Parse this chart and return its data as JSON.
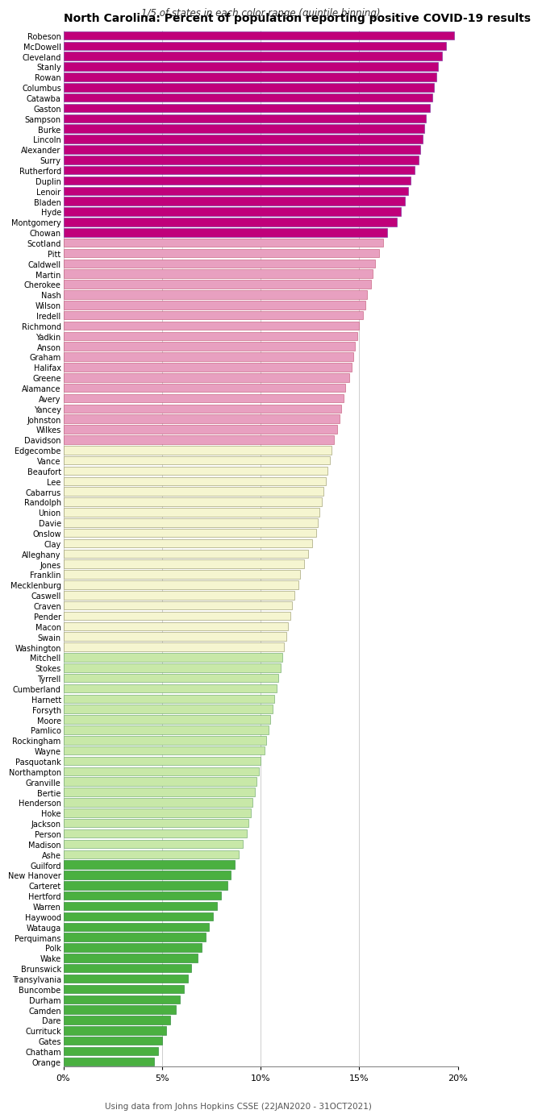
{
  "title": "North Carolina: Percent of population reporting positive COVID-19 results",
  "subtitle": "1/5 of states in each color range (quintile binning)",
  "footnote": "Using data from Johns Hopkins CSSE (22JAN2020 - 31OCT2021)",
  "xlim": [
    0,
    20
  ],
  "xticks": [
    0,
    5,
    10,
    15,
    20
  ],
  "xticklabels": [
    "0%",
    "5%",
    "10%",
    "15%",
    "20%"
  ],
  "counties": [
    "Robeson",
    "McDowell",
    "Cleveland",
    "Stanly",
    "Rowan",
    "Columbus",
    "Catawba",
    "Gaston",
    "Sampson",
    "Burke",
    "Lincoln",
    "Alexander",
    "Surry",
    "Rutherford",
    "Duplin",
    "Lenoir",
    "Bladen",
    "Hyde",
    "Montgomery",
    "Chowan",
    "Scotland",
    "Pitt",
    "Caldwell",
    "Martin",
    "Cherokee",
    "Nash",
    "Wilson",
    "Iredell",
    "Richmond",
    "Yadkin",
    "Anson",
    "Graham",
    "Halifax",
    "Greene",
    "Alamance",
    "Avery",
    "Yancey",
    "Johnston",
    "Wilkes",
    "Davidson",
    "Edgecombe",
    "Vance",
    "Beaufort",
    "Lee",
    "Cabarrus",
    "Randolph",
    "Union",
    "Davie",
    "Onslow",
    "Clay",
    "Alleghany",
    "Jones",
    "Franklin",
    "Mecklenburg",
    "Caswell",
    "Craven",
    "Pender",
    "Macon",
    "Swain",
    "Washington",
    "Mitchell",
    "Stokes",
    "Tyrrell",
    "Cumberland",
    "Harnett",
    "Forsyth",
    "Moore",
    "Pamlico",
    "Rockingham",
    "Wayne",
    "Pasquotank",
    "Northampton",
    "Granville",
    "Bertie",
    "Henderson",
    "Hoke",
    "Jackson",
    "Person",
    "Madison",
    "Ashe",
    "Guilford",
    "New Hanover",
    "Carteret",
    "Hertford",
    "Warren",
    "Haywood",
    "Watauga",
    "Perquimans",
    "Polk",
    "Wake",
    "Brunswick",
    "Transylvania",
    "Buncombe",
    "Durham",
    "Camden",
    "Dare",
    "Currituck",
    "Gates",
    "Chatham",
    "Orange"
  ],
  "values": [
    19.8,
    19.4,
    19.2,
    19.0,
    18.9,
    18.8,
    18.7,
    18.6,
    18.4,
    18.3,
    18.2,
    18.1,
    18.0,
    17.8,
    17.6,
    17.5,
    17.3,
    17.1,
    16.9,
    16.4,
    16.2,
    16.0,
    15.8,
    15.7,
    15.6,
    15.4,
    15.3,
    15.2,
    15.0,
    14.9,
    14.8,
    14.7,
    14.6,
    14.5,
    14.3,
    14.2,
    14.1,
    14.0,
    13.9,
    13.7,
    13.6,
    13.5,
    13.4,
    13.3,
    13.2,
    13.1,
    13.0,
    12.9,
    12.8,
    12.6,
    12.4,
    12.2,
    12.0,
    11.9,
    11.7,
    11.6,
    11.5,
    11.4,
    11.3,
    11.2,
    11.1,
    11.0,
    10.9,
    10.8,
    10.7,
    10.6,
    10.5,
    10.4,
    10.3,
    10.2,
    10.0,
    9.9,
    9.8,
    9.7,
    9.6,
    9.5,
    9.4,
    9.3,
    9.1,
    8.9,
    8.7,
    8.5,
    8.3,
    8.0,
    7.8,
    7.6,
    7.4,
    7.2,
    7.0,
    6.8,
    6.5,
    6.3,
    6.1,
    5.9,
    5.7,
    5.4,
    5.2,
    5.0,
    4.8,
    4.6
  ],
  "quintile_fill_colors": [
    "#c0007a",
    "#e8a0c0",
    "#f5f5d0",
    "#c8e8a8",
    "#4ab040"
  ],
  "quintile_edge_colors": [
    "#7030a0",
    "#c05070",
    "#909060",
    "#60a060",
    "#208030"
  ],
  "bar_height": 0.82,
  "title_fontsize": 10,
  "subtitle_fontsize": 8.5,
  "tick_fontsize": 7,
  "xtick_fontsize": 8,
  "footnote_fontsize": 7.5
}
